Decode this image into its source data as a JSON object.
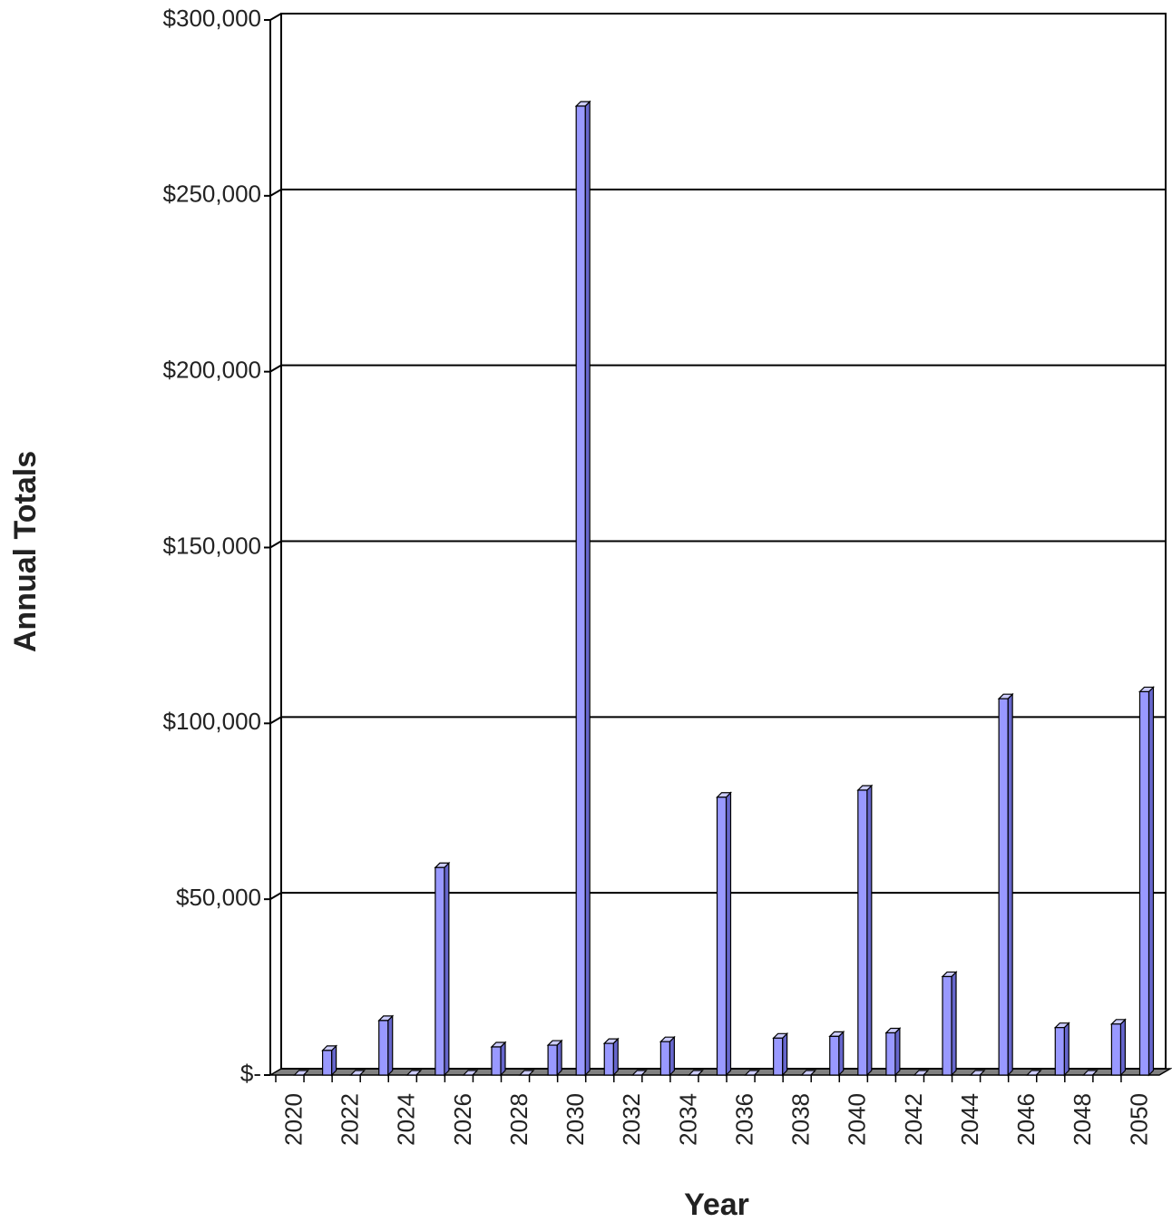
{
  "chart_data": {
    "type": "bar3d",
    "x_label": "Year",
    "y_label": "Annual Totals",
    "categories": [
      "2020",
      null,
      "2022",
      null,
      "2024",
      null,
      "2026",
      null,
      "2028",
      null,
      "2030",
      null,
      "2032",
      null,
      "2034",
      null,
      "2036",
      null,
      "2038",
      null,
      "2040",
      null,
      "2042",
      null,
      "2044",
      null,
      "2046",
      null,
      "2048",
      null,
      "2050"
    ],
    "values": [
      0,
      7000,
      0,
      15500,
      0,
      59000,
      0,
      8000,
      0,
      8500,
      275500,
      9000,
      0,
      9500,
      0,
      79000,
      0,
      10500,
      0,
      11000,
      81000,
      12000,
      0,
      28000,
      0,
      107000,
      0,
      13500,
      0,
      14500,
      109000
    ],
    "color": "#9999ff",
    "ylim": [
      0,
      300000
    ],
    "yticks": [
      {
        "value": 0,
        "label": "$-"
      },
      {
        "value": 50000,
        "label": "$50,000"
      },
      {
        "value": 100000,
        "label": "$100,000"
      },
      {
        "value": 150000,
        "label": "$150,000"
      },
      {
        "value": 200000,
        "label": "$200,000"
      },
      {
        "value": 250000,
        "label": "$250,000"
      },
      {
        "value": 300000,
        "label": "$300,000"
      }
    ],
    "grid": true
  }
}
